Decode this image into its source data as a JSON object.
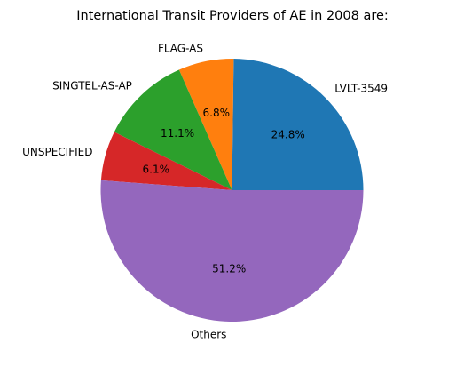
{
  "chart_data": {
    "type": "pie",
    "title": "International Transit Providers of AE in 2008  are:",
    "slices": [
      {
        "label": "LVLT-3549",
        "value": 24.8,
        "pct_label": "24.8%",
        "color": "#1f77b4"
      },
      {
        "label": "FLAG-AS",
        "value": 6.8,
        "pct_label": "6.8%",
        "color": "#ff7f0e"
      },
      {
        "label": "SINGTEL-AS-AP",
        "value": 11.1,
        "pct_label": "11.1%",
        "color": "#2ca02c"
      },
      {
        "label": "UNSPECIFIED",
        "value": 6.1,
        "pct_label": "6.1%",
        "color": "#d62728"
      },
      {
        "label": "Others",
        "value": 51.2,
        "pct_label": "51.2%",
        "color": "#9467bd"
      }
    ],
    "start_angle": 0,
    "direction": "counterclockwise"
  }
}
